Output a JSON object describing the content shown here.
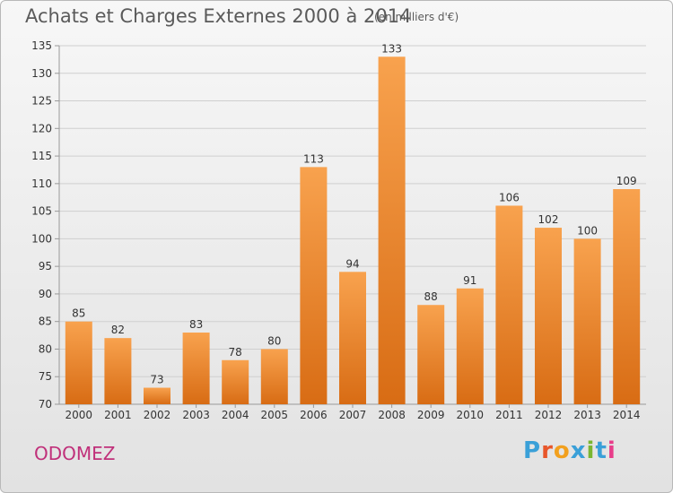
{
  "header": {
    "title": "Achats et Charges Externes 2000 à 2014",
    "unit": "(en milliers d'€)"
  },
  "footer": {
    "commune": "ODOMEZ",
    "logo_text": "Proxiti",
    "logo_colors": [
      "#3aa0d8",
      "#e8562a",
      "#f2a01e",
      "#3aa0d8",
      "#7ab631",
      "#3aa0d8",
      "#e83d8a"
    ]
  },
  "colors": {
    "bar_light": "#f8a24e",
    "bar_dark": "#d86c14",
    "grid": "#cfcfcf",
    "axis": "#999999"
  },
  "chart_data": {
    "type": "bar",
    "title": "Achats et Charges Externes 2000 à 2014",
    "subtitle": "(en milliers d'€)",
    "xlabel": "",
    "ylabel": "",
    "categories": [
      "2000",
      "2001",
      "2002",
      "2003",
      "2004",
      "2005",
      "2006",
      "2007",
      "2008",
      "2009",
      "2010",
      "2011",
      "2012",
      "2013",
      "2014"
    ],
    "values": [
      85,
      82,
      73,
      83,
      78,
      80,
      113,
      94,
      133,
      88,
      91,
      106,
      102,
      100,
      109
    ],
    "ylim": [
      70,
      135
    ],
    "yticks": [
      70,
      75,
      80,
      85,
      90,
      95,
      100,
      105,
      110,
      115,
      120,
      125,
      130,
      135
    ],
    "grid": true
  }
}
